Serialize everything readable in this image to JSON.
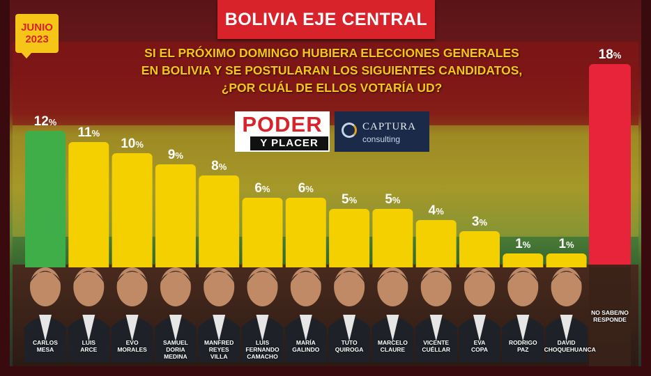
{
  "header": {
    "title": "BOLIVIA EJE CENTRAL"
  },
  "date_badge": {
    "line1": "JUNIO",
    "line2": "2023"
  },
  "question": {
    "line1": "SI EL PRÓXIMO DOMINGO HUBIERA ELECCIONES GENERALES",
    "line2": "EN BOLIVIA Y SE POSTULARAN LOS SIGUIENTES CANDIDATOS,",
    "line3": "¿POR CUÁL DE ELLOS VOTARÍA UD?"
  },
  "logos": {
    "poder_line1": "PODER",
    "poder_line2": "Y PLACER",
    "captura_line1": "CAPTURA",
    "captura_line2": "consulting"
  },
  "colors": {
    "leader": "#3fae49",
    "candidates": "#f5d000",
    "undecided": "#e8243a",
    "banner": "#d9232b"
  },
  "chart_data": {
    "type": "bar",
    "unit": "%",
    "categories": [
      "CARLOS MESA",
      "LUIS ARCE",
      "EVO MORALES",
      "SAMUEL DORIA MEDINA",
      "MANFRED REYES VILLA",
      "LUIS FERNANDO CAMACHO",
      "MARÍA GALINDO",
      "TUTO QUIROGA",
      "MARCELO CLAURE",
      "VICENTE CUÉLLAR",
      "EVA COPA",
      "RODRIGO PAZ",
      "DAVID CHOQUEHUANCA",
      "NO SABE/NO RESPONDE"
    ],
    "name_lines": [
      [
        "CARLOS",
        "MESA"
      ],
      [
        "LUIS",
        "ARCE"
      ],
      [
        "EVO",
        "MORALES"
      ],
      [
        "SAMUEL",
        "DORIA",
        "MEDINA"
      ],
      [
        "MANFRED",
        "REYES",
        "VILLA"
      ],
      [
        "LUIS",
        "FERNANDO",
        "CAMACHO"
      ],
      [
        "MARÍA",
        "GALINDO"
      ],
      [
        "TUTO",
        "QUIROGA"
      ],
      [
        "MARCELO",
        "CLAURE"
      ],
      [
        "VICENTE",
        "CUÉLLAR"
      ],
      [
        "EVA",
        "COPA"
      ],
      [
        "RODRIGO",
        "PAZ"
      ],
      [
        "DAVID",
        "CHOQUEHUANCA"
      ],
      [
        "NO SABE/NO",
        "RESPONDE"
      ]
    ],
    "values": [
      12,
      11,
      10,
      9,
      8,
      6,
      6,
      5,
      5,
      4,
      3,
      1,
      1,
      18
    ],
    "value_labels": [
      "12",
      "11",
      "10",
      "9",
      "8",
      "6",
      "6",
      "5",
      "5",
      "4",
      "3",
      "1",
      "1",
      "18"
    ],
    "bar_colors": [
      "#3fae49",
      "#f5d000",
      "#f5d000",
      "#f5d000",
      "#f5d000",
      "#f5d000",
      "#f5d000",
      "#f5d000",
      "#f5d000",
      "#f5d000",
      "#f5d000",
      "#f5d000",
      "#f5d000",
      "#e8243a"
    ],
    "ylim": [
      0,
      18
    ],
    "grid": false,
    "legend": "none"
  }
}
